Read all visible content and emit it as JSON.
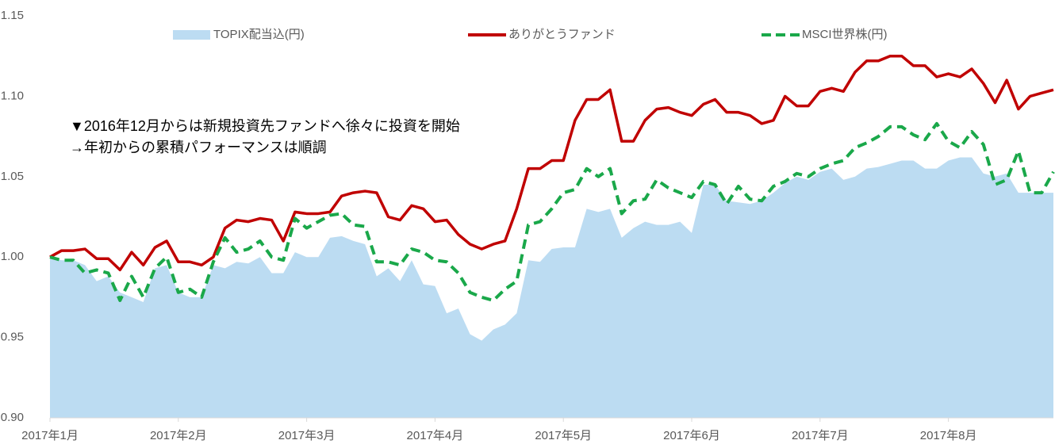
{
  "chart_data": {
    "type": "line",
    "annotation": [
      "▼2016年12月からは新規投資先ファンドへ徐々に投資を開始",
      "→年初からの累積パフォーマンスは順調"
    ],
    "categories": [
      "2017年1月",
      null,
      null,
      null,
      null,
      null,
      null,
      null,
      null,
      null,
      null,
      "2017年2月",
      null,
      null,
      null,
      null,
      null,
      null,
      null,
      null,
      null,
      null,
      "2017年3月",
      null,
      null,
      null,
      null,
      null,
      null,
      null,
      null,
      null,
      null,
      "2017年4月",
      null,
      null,
      null,
      null,
      null,
      null,
      null,
      null,
      null,
      null,
      "2017年5月",
      null,
      null,
      null,
      null,
      null,
      null,
      null,
      null,
      null,
      null,
      "2017年6月",
      null,
      null,
      null,
      null,
      null,
      null,
      null,
      null,
      null,
      null,
      "2017年7月",
      null,
      null,
      null,
      null,
      null,
      null,
      null,
      null,
      null,
      null,
      "2017年8月",
      null,
      null,
      null,
      null,
      null,
      null,
      null,
      null,
      null
    ],
    "series": [
      {
        "name": "TOPIX配当込(円)",
        "color": "#bcdcf2",
        "style": "area",
        "values": [
          1.0,
          0.998,
          0.998,
          0.995,
          0.985,
          0.988,
          0.978,
          0.975,
          0.972,
          0.993,
          0.995,
          0.978,
          0.975,
          0.975,
          0.995,
          0.993,
          0.997,
          0.996,
          1.0,
          0.99,
          0.99,
          1.003,
          1.0,
          1.0,
          1.012,
          1.013,
          1.01,
          1.008,
          0.988,
          0.993,
          0.985,
          0.998,
          0.983,
          0.982,
          0.965,
          0.968,
          0.952,
          0.948,
          0.955,
          0.958,
          0.965,
          0.998,
          0.997,
          1.005,
          1.006,
          1.006,
          1.03,
          1.028,
          1.03,
          1.012,
          1.018,
          1.022,
          1.02,
          1.02,
          1.022,
          1.015,
          1.045,
          1.045,
          1.035,
          1.034,
          1.033,
          1.035,
          1.04,
          1.046,
          1.05,
          1.048,
          1.053,
          1.055,
          1.048,
          1.05,
          1.055,
          1.056,
          1.058,
          1.06,
          1.06,
          1.055,
          1.055,
          1.06,
          1.062,
          1.062,
          1.052,
          1.05,
          1.052,
          1.04,
          1.04,
          1.04,
          1.04
        ]
      },
      {
        "name": "ありがとうファンド",
        "color": "#c00000",
        "style": "solid",
        "values": [
          1.0,
          1.004,
          1.004,
          1.005,
          0.999,
          0.999,
          0.992,
          1.003,
          0.995,
          1.006,
          1.01,
          0.997,
          0.997,
          0.995,
          1.0,
          1.018,
          1.023,
          1.022,
          1.024,
          1.023,
          1.01,
          1.028,
          1.027,
          1.027,
          1.028,
          1.038,
          1.04,
          1.041,
          1.04,
          1.025,
          1.023,
          1.032,
          1.03,
          1.022,
          1.023,
          1.014,
          1.008,
          1.005,
          1.008,
          1.01,
          1.03,
          1.055,
          1.055,
          1.06,
          1.06,
          1.085,
          1.098,
          1.098,
          1.104,
          1.072,
          1.072,
          1.085,
          1.092,
          1.093,
          1.09,
          1.088,
          1.095,
          1.098,
          1.09,
          1.09,
          1.088,
          1.083,
          1.085,
          1.1,
          1.094,
          1.094,
          1.103,
          1.105,
          1.103,
          1.115,
          1.122,
          1.122,
          1.125,
          1.125,
          1.119,
          1.119,
          1.112,
          1.114,
          1.112,
          1.117,
          1.108,
          1.096,
          1.11,
          1.092,
          1.1,
          1.102,
          1.104
        ]
      },
      {
        "name": "MSCI世界株(円)",
        "color": "#1aa84a",
        "style": "dashed",
        "values": [
          1.0,
          0.998,
          0.998,
          0.99,
          0.992,
          0.99,
          0.973,
          0.988,
          0.975,
          0.993,
          1.0,
          0.978,
          0.98,
          0.975,
          0.997,
          1.012,
          1.003,
          1.005,
          1.01,
          1.0,
          0.998,
          1.024,
          1.018,
          1.022,
          1.026,
          1.027,
          1.02,
          1.019,
          0.997,
          0.997,
          0.995,
          1.005,
          1.003,
          0.998,
          0.997,
          0.99,
          0.978,
          0.975,
          0.973,
          0.98,
          0.985,
          1.02,
          1.022,
          1.03,
          1.04,
          1.042,
          1.055,
          1.05,
          1.055,
          1.027,
          1.035,
          1.036,
          1.048,
          1.043,
          1.04,
          1.037,
          1.047,
          1.045,
          1.033,
          1.044,
          1.036,
          1.035,
          1.044,
          1.047,
          1.052,
          1.05,
          1.055,
          1.058,
          1.06,
          1.068,
          1.071,
          1.075,
          1.081,
          1.081,
          1.076,
          1.073,
          1.083,
          1.072,
          1.068,
          1.078,
          1.07,
          1.045,
          1.048,
          1.066,
          1.04,
          1.04,
          1.053
        ]
      }
    ],
    "ylim": [
      0.9,
      1.15
    ],
    "yticks": [
      {
        "value": 0.9,
        "label": "0.90"
      },
      0.95,
      {
        "value": 1,
        "label": "1.00"
      },
      1.05,
      {
        "value": 1.1,
        "label": "1.10"
      },
      1.15
    ],
    "grid": false,
    "legend": "top"
  }
}
